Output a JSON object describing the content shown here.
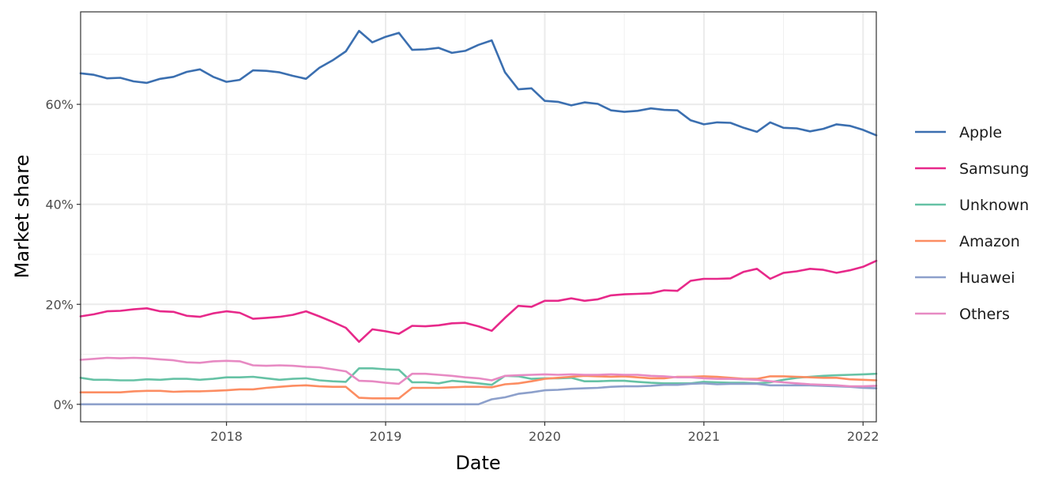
{
  "chart_data": {
    "type": "line",
    "title": "",
    "xlabel": "Date",
    "ylabel": "Market share",
    "x_ticks": [
      "2018",
      "2019",
      "2020",
      "2021",
      "2022"
    ],
    "y_ticks": [
      "0%",
      "20%",
      "40%",
      "60%"
    ],
    "ylim": [
      -3.5,
      78.5
    ],
    "xlim": [
      "2017-02",
      "2022-02"
    ],
    "grid": true,
    "legend": "right",
    "x": [
      "2017-02",
      "2017-03",
      "2017-04",
      "2017-05",
      "2017-06",
      "2017-07",
      "2017-08",
      "2017-09",
      "2017-10",
      "2017-11",
      "2017-12",
      "2018-01",
      "2018-02",
      "2018-03",
      "2018-04",
      "2018-05",
      "2018-06",
      "2018-07",
      "2018-08",
      "2018-09",
      "2018-10",
      "2018-11",
      "2018-12",
      "2019-01",
      "2019-02",
      "2019-03",
      "2019-04",
      "2019-05",
      "2019-06",
      "2019-07",
      "2019-08",
      "2019-09",
      "2019-10",
      "2019-11",
      "2019-12",
      "2020-01",
      "2020-02",
      "2020-03",
      "2020-04",
      "2020-05",
      "2020-06",
      "2020-07",
      "2020-08",
      "2020-09",
      "2020-10",
      "2020-11",
      "2020-12",
      "2021-01",
      "2021-02",
      "2021-03",
      "2021-04",
      "2021-05",
      "2021-06",
      "2021-07",
      "2021-08",
      "2021-09",
      "2021-10",
      "2021-11",
      "2021-12",
      "2022-01",
      "2022-02"
    ],
    "series": [
      {
        "name": "Apple",
        "color": "#3b6fb0",
        "values": [
          66.2,
          65.9,
          65.2,
          65.3,
          64.6,
          64.3,
          65.1,
          65.5,
          66.5,
          67.0,
          65.5,
          64.5,
          64.9,
          66.8,
          66.7,
          66.4,
          65.7,
          65.1,
          67.3,
          68.8,
          70.6,
          74.7,
          72.4,
          73.5,
          74.3,
          70.9,
          71.0,
          71.3,
          70.3,
          70.7,
          71.9,
          72.8,
          66.4,
          63.0,
          63.2,
          60.7,
          60.5,
          59.8,
          60.4,
          60.1,
          58.8,
          58.5,
          58.7,
          59.2,
          58.9,
          58.8,
          56.8,
          56.0,
          56.4,
          56.3,
          55.3,
          54.5,
          56.4,
          55.3,
          55.2,
          54.6,
          55.1,
          56.0,
          55.7,
          54.9,
          53.8
        ]
      },
      {
        "name": "Samsung",
        "color": "#e7298a",
        "values": [
          17.6,
          18.0,
          18.6,
          18.7,
          19.0,
          19.2,
          18.6,
          18.5,
          17.7,
          17.5,
          18.2,
          18.6,
          18.3,
          17.1,
          17.3,
          17.5,
          17.9,
          18.6,
          17.6,
          16.5,
          15.3,
          12.5,
          15.0,
          14.6,
          14.1,
          15.7,
          15.6,
          15.8,
          16.2,
          16.3,
          15.6,
          14.7,
          17.3,
          19.7,
          19.5,
          20.7,
          20.7,
          21.2,
          20.7,
          21.0,
          21.8,
          22.0,
          22.1,
          22.2,
          22.8,
          22.7,
          24.7,
          25.1,
          25.1,
          25.2,
          26.5,
          27.1,
          25.1,
          26.3,
          26.6,
          27.1,
          26.9,
          26.3,
          26.8,
          27.5,
          28.7
        ]
      },
      {
        "name": "Unknown",
        "color": "#66c2a5",
        "values": [
          5.3,
          4.9,
          4.9,
          4.8,
          4.8,
          5.0,
          4.9,
          5.1,
          5.1,
          4.9,
          5.1,
          5.4,
          5.4,
          5.5,
          5.2,
          4.9,
          5.1,
          5.2,
          4.8,
          4.6,
          4.5,
          7.2,
          7.2,
          7.0,
          6.9,
          4.4,
          4.4,
          4.2,
          4.7,
          4.5,
          4.2,
          3.9,
          5.7,
          5.6,
          5.1,
          5.2,
          5.2,
          5.3,
          4.6,
          4.6,
          4.7,
          4.7,
          4.5,
          4.3,
          4.2,
          4.2,
          4.2,
          4.5,
          4.4,
          4.3,
          4.3,
          4.2,
          4.4,
          4.9,
          5.3,
          5.5,
          5.7,
          5.8,
          5.9,
          6.0,
          6.1
        ]
      },
      {
        "name": "Amazon",
        "color": "#fc8d62",
        "values": [
          2.4,
          2.4,
          2.4,
          2.4,
          2.6,
          2.7,
          2.7,
          2.5,
          2.6,
          2.6,
          2.7,
          2.8,
          3.0,
          3.0,
          3.3,
          3.5,
          3.7,
          3.8,
          3.6,
          3.5,
          3.5,
          1.3,
          1.2,
          1.2,
          1.2,
          3.3,
          3.3,
          3.3,
          3.4,
          3.5,
          3.5,
          3.4,
          4.0,
          4.2,
          4.6,
          5.1,
          5.3,
          5.5,
          5.7,
          5.6,
          5.5,
          5.6,
          5.4,
          5.2,
          5.2,
          5.5,
          5.5,
          5.6,
          5.5,
          5.3,
          5.1,
          5.1,
          5.6,
          5.6,
          5.5,
          5.4,
          5.3,
          5.3,
          5.0,
          4.9,
          4.8
        ]
      },
      {
        "name": "Huawei",
        "color": "#8da0cb",
        "values": [
          0,
          0,
          0,
          0,
          0,
          0,
          0,
          0,
          0,
          0,
          0,
          0,
          0,
          0,
          0,
          0,
          0,
          0,
          0,
          0,
          0,
          0,
          0,
          0,
          0,
          0,
          0,
          0,
          0,
          0,
          0,
          1.0,
          1.4,
          2.1,
          2.4,
          2.8,
          2.9,
          3.1,
          3.2,
          3.3,
          3.5,
          3.6,
          3.6,
          3.7,
          3.9,
          3.9,
          4.1,
          4.2,
          4.0,
          4.1,
          4.1,
          4.1,
          3.8,
          3.8,
          3.8,
          3.8,
          3.7,
          3.6,
          3.5,
          3.3,
          3.2
        ]
      },
      {
        "name": "Others",
        "color": "#e78ac3",
        "values": [
          8.9,
          9.1,
          9.3,
          9.2,
          9.3,
          9.2,
          9.0,
          8.8,
          8.4,
          8.3,
          8.6,
          8.7,
          8.6,
          7.8,
          7.7,
          7.8,
          7.7,
          7.5,
          7.4,
          7.0,
          6.6,
          4.7,
          4.6,
          4.3,
          4.1,
          6.1,
          6.1,
          5.9,
          5.7,
          5.4,
          5.2,
          4.8,
          5.7,
          5.8,
          5.9,
          6.0,
          5.9,
          6.0,
          5.9,
          5.9,
          6.0,
          5.9,
          5.9,
          5.7,
          5.6,
          5.4,
          5.4,
          5.2,
          5.1,
          5.1,
          5.0,
          4.9,
          4.6,
          4.4,
          4.2,
          4.0,
          3.9,
          3.8,
          3.6,
          3.6,
          3.7
        ]
      }
    ]
  }
}
